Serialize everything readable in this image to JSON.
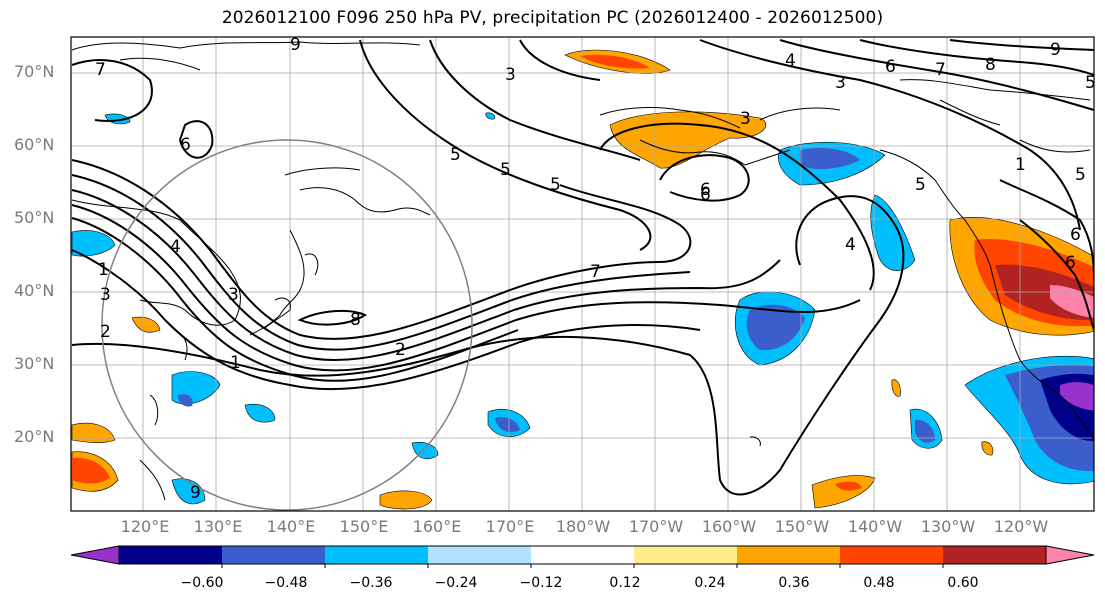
{
  "title": "2026012100 F096 250 hPa PV, precipitation PC (2026012400 - 2026012500)",
  "lat_labels": [
    "70°N",
    "60°N",
    "50°N",
    "40°N",
    "30°N",
    "20°N"
  ],
  "lon_labels": [
    "120°E",
    "130°E",
    "140°E",
    "150°E",
    "160°E",
    "170°E",
    "180°W",
    "170°W",
    "160°W",
    "150°W",
    "140°W",
    "130°W",
    "120°W"
  ],
  "colorbar": {
    "colors": [
      "#9932cc",
      "#00008b",
      "#3a5fcd",
      "#00bfff",
      "#b0e2ff",
      "#ffffff",
      "#ffec8b",
      "#ffa500",
      "#ff4500",
      "#b22222",
      "#ff82ab"
    ],
    "ticks": [
      "−0.60",
      "−0.48",
      "−0.36",
      "−0.24",
      "−0.12",
      "0.12",
      "0.24",
      "0.36",
      "0.48",
      "0.60"
    ]
  },
  "contour_labels": [
    "7",
    "9",
    "3",
    "6",
    "4",
    "3",
    "5",
    "6",
    "7",
    "8",
    "9",
    "5",
    "6",
    "5",
    "3",
    "4",
    "3",
    "1",
    "3",
    "6",
    "7",
    "8",
    "2",
    "1",
    "2",
    "4",
    "6",
    "6",
    "5",
    "5",
    "5",
    "1",
    "9"
  ],
  "colors": {
    "frame": "#000000",
    "grid": "#a9a9a9",
    "circle": "#808080",
    "axis_text": "#7a7a7a"
  }
}
